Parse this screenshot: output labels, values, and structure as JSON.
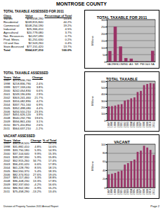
{
  "header": {
    "title": "MONTROSE COUNTY"
  },
  "tables": [
    {
      "title": "TOTAL TAXABLE ASSESSED FOR 2011",
      "columns": [
        "Class",
        "Value",
        "Percentage of Total"
      ],
      "rows": [
        [
          "Vacant",
          "$75,458,290",
          "13.4%"
        ],
        [
          "Residential",
          "$249,815,840",
          "44.2%"
        ],
        [
          "Commercial",
          "$108,254,190",
          "19.2%"
        ],
        [
          "Industrial",
          "$25,366,410",
          "4.5%"
        ],
        [
          "Agricultural",
          "$20,779,080",
          "3.7%"
        ],
        [
          "Nat. Resources",
          "$4,057,090",
          "0.7%"
        ],
        [
          "Prod. Mines",
          "$1,251,630",
          "0.2%"
        ],
        [
          "Oil and Gas",
          "$2,503,260",
          "0.4%"
        ],
        [
          "State Assessed",
          "$77,151,420",
          "13.7%"
        ],
        [
          "Total",
          "$564,637,210",
          "100.0%"
        ]
      ]
    },
    {
      "title": "TOTAL TAXABLE ASSESSED",
      "columns": [
        "Years",
        "Value",
        "Change"
      ],
      "rows": [
        [
          "1997",
          "$213,636,760",
          null
        ],
        [
          "1998",
          "$218,836,790",
          "2.4%"
        ],
        [
          "1999",
          "$227,159,030",
          "3.8%"
        ],
        [
          "2000",
          "$242,054,830",
          "6.6%"
        ],
        [
          "2001",
          "$249,190,690",
          "2.9%"
        ],
        [
          "2002",
          "$303,241,460",
          "21.7%"
        ],
        [
          "2003",
          "$316,082,890",
          "4.2%"
        ],
        [
          "2004",
          "$337,751,160",
          "6.9%"
        ],
        [
          "2005",
          "$352,498,080",
          "4.4%"
        ],
        [
          "2006",
          "$434,510,210",
          "23.3%"
        ],
        [
          "2007",
          "$451,626,120",
          "3.9%"
        ],
        [
          "2008",
          "$540,232,790",
          "19.6%"
        ],
        [
          "2009",
          "$556,861,430",
          "3.1%"
        ],
        [
          "2010",
          "$571,410,850",
          "2.6%"
        ],
        [
          "2011",
          "$564,637,210",
          "-1.2%"
        ]
      ]
    },
    {
      "title": "VACANT ASSESSED",
      "columns": [
        "Years",
        "Value",
        "Change",
        "% of Total"
      ],
      "rows": [
        [
          "1997",
          "$30,418,520",
          null,
          "14.2%"
        ],
        [
          "1998",
          "$31,882,410",
          "4.8%",
          "14.6%"
        ],
        [
          "1999",
          "$33,750,180",
          "5.9%",
          "14.9%"
        ],
        [
          "2000",
          "$37,104,640",
          "9.9%",
          "15.3%"
        ],
        [
          "2001",
          "$39,287,330",
          "5.9%",
          "15.8%"
        ],
        [
          "2002",
          "$52,915,260",
          "34.7%",
          "17.4%"
        ],
        [
          "2003",
          "$56,431,020",
          "6.6%",
          "17.8%"
        ],
        [
          "2004",
          "$61,228,790",
          "8.5%",
          "18.1%"
        ],
        [
          "2005",
          "$64,550,370",
          "5.4%",
          "18.3%"
        ],
        [
          "2006",
          "$82,374,910",
          "27.6%",
          "19.0%"
        ],
        [
          "2007",
          "$85,117,460",
          "3.3%",
          "18.8%"
        ],
        [
          "2008",
          "$96,408,230",
          "13.3%",
          "17.8%"
        ],
        [
          "2009",
          "$92,337,650",
          "-4.2%",
          "16.6%"
        ],
        [
          "2010",
          "$86,902,180",
          "-5.9%",
          "15.2%"
        ],
        [
          "2011",
          "$75,458,290",
          "-13.2%",
          "13.4%"
        ]
      ]
    }
  ],
  "chart_data": [
    {
      "type": "bar",
      "title": "TOTAL TAXABLE FOR 2011",
      "y_label": "Millions",
      "categories": [
        "VAC",
        "RES",
        "COM",
        "IND",
        "AG",
        "NR",
        "PM",
        "O&G",
        "SA"
      ],
      "values": [
        75.5,
        249.8,
        108.3,
        25.4,
        20.8,
        4.1,
        1.3,
        2.5,
        77.2
      ],
      "color": "#993366",
      "ylim": [
        0,
        300
      ],
      "yticks": [
        0,
        50,
        100,
        150,
        200,
        250,
        300
      ],
      "grid": true
    },
    {
      "type": "bar",
      "title": "TOTAL TAXABLE",
      "y_label": "Millions",
      "categories": [
        "1997",
        "1998",
        "1999",
        "2000",
        "2001",
        "2002",
        "2003",
        "2004",
        "2005",
        "2006",
        "2007",
        "2008",
        "2009",
        "2010",
        "2011"
      ],
      "values": [
        213.6,
        218.8,
        227.2,
        242.1,
        249.2,
        303.2,
        316.1,
        337.8,
        352.5,
        434.5,
        451.6,
        540.2,
        556.9,
        571.4,
        564.6
      ],
      "color": "#993366",
      "ylim": [
        0,
        600
      ],
      "yticks": [
        0,
        100,
        200,
        300,
        400,
        500,
        600
      ],
      "grid": true
    },
    {
      "type": "bar",
      "title": "VACANT",
      "y_label": "Millions",
      "categories": [
        "1997",
        "1998",
        "1999",
        "2000",
        "2001",
        "2002",
        "2003",
        "2004",
        "2005",
        "2006",
        "2007",
        "2008",
        "2009",
        "2010",
        "2011"
      ],
      "values": [
        30.4,
        31.9,
        33.8,
        37.1,
        39.3,
        52.9,
        56.4,
        61.2,
        64.6,
        82.4,
        85.1,
        96.4,
        92.3,
        86.9,
        75.5
      ],
      "color": "#993366",
      "ylim": [
        0,
        100
      ],
      "yticks": [
        0,
        20,
        40,
        60,
        80,
        100
      ],
      "grid": true
    }
  ],
  "footer": {
    "note": "Division of Property Taxation 2011 Annual Report",
    "page": "Page 2"
  }
}
